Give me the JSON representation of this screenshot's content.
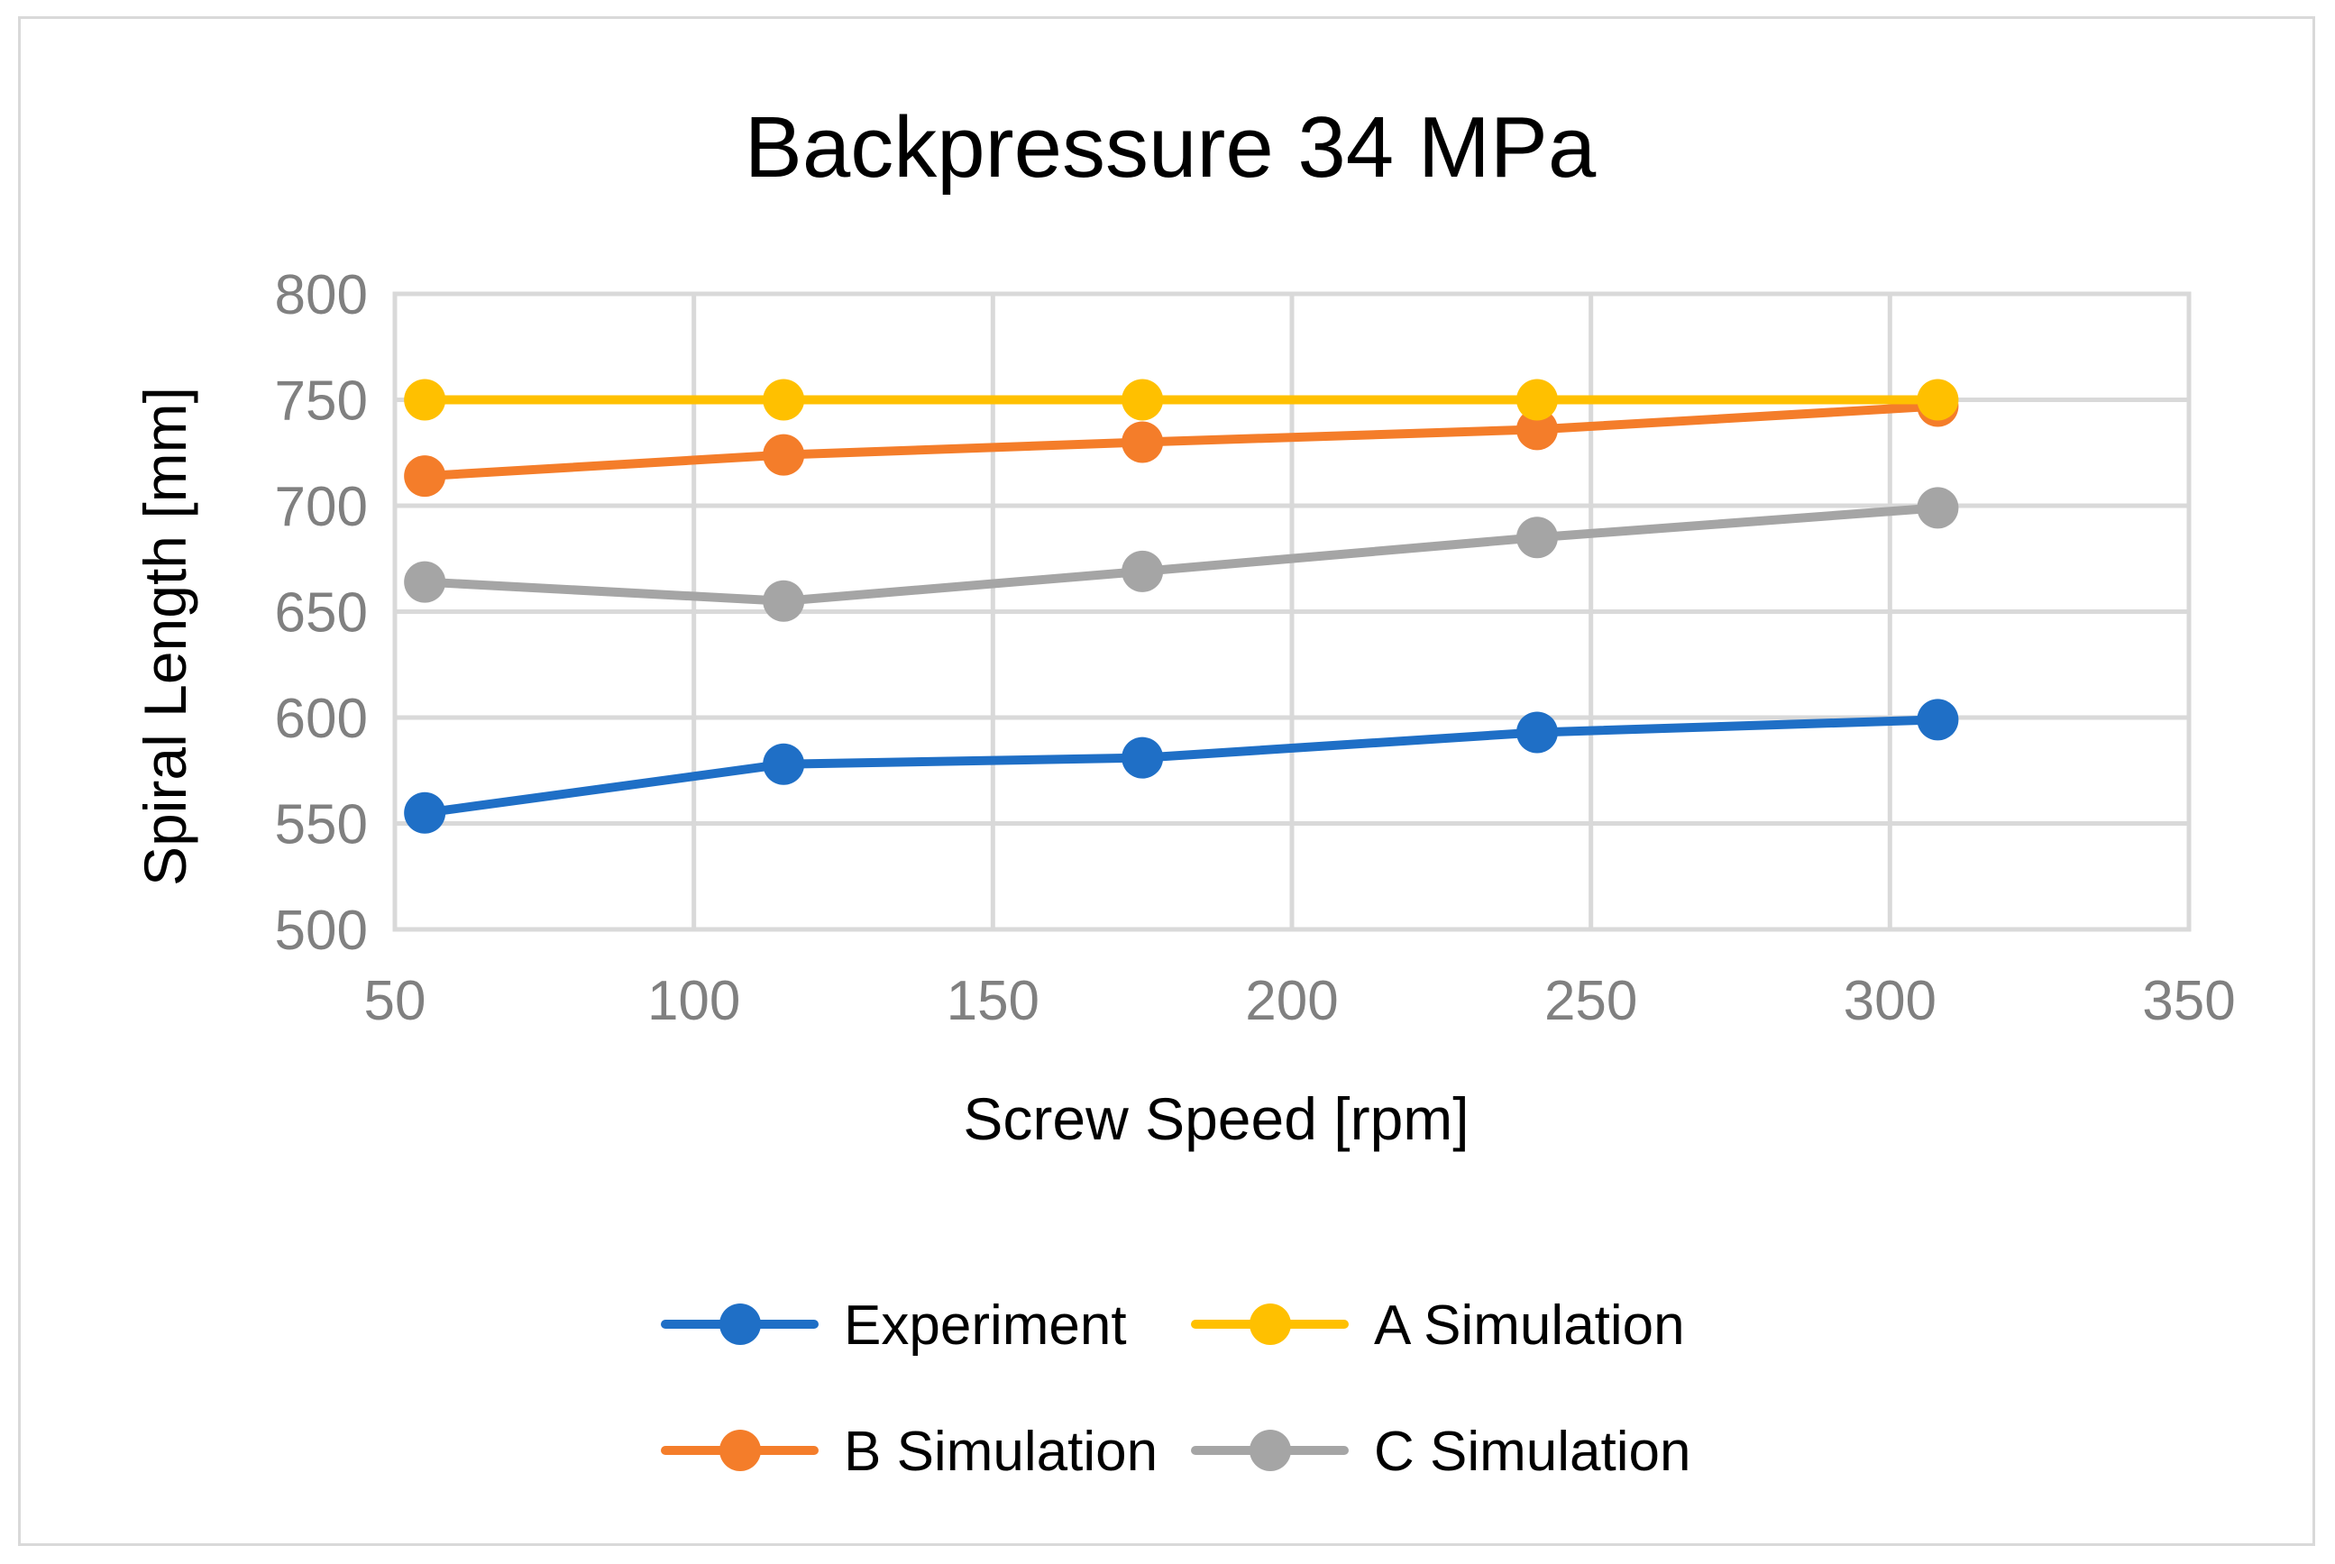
{
  "chart_data": {
    "type": "line",
    "title": "Backpressure 34 MPa",
    "xlabel": "Screw Speed [rpm]",
    "ylabel": "Spiral Length [mm]",
    "xlim": [
      50,
      350
    ],
    "ylim": [
      500,
      800
    ],
    "xticks": [
      50,
      100,
      150,
      200,
      250,
      300,
      350
    ],
    "yticks": [
      500,
      550,
      600,
      650,
      700,
      750,
      800
    ],
    "grid": true,
    "legend_position": "bottom",
    "x": [
      55,
      115,
      175,
      241,
      308
    ],
    "series": [
      {
        "name": "Experiment",
        "color": "#1f6fc6",
        "values": [
          555,
          578,
          581,
          593,
          599
        ]
      },
      {
        "name": "A Simulation",
        "color": "#ffc000",
        "values": [
          750,
          750,
          750,
          750,
          750
        ]
      },
      {
        "name": "B Simulation",
        "color": "#f47d2a",
        "values": [
          714,
          724,
          730,
          736,
          747
        ]
      },
      {
        "name": "C Simulation",
        "color": "#a5a5a5",
        "values": [
          664,
          655,
          669,
          685,
          699
        ]
      }
    ]
  }
}
